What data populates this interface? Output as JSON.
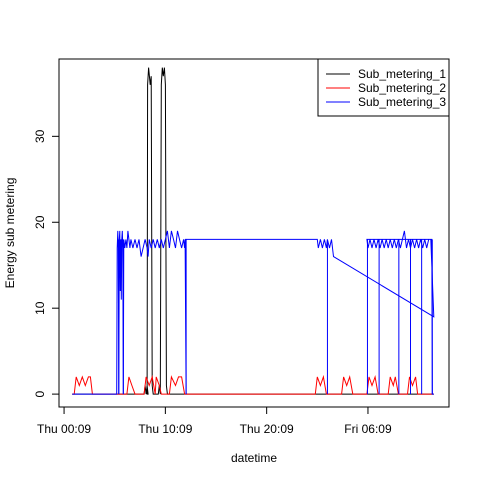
{
  "chart_data": {
    "type": "line",
    "title": "",
    "xlabel": "datetime",
    "ylabel": "Energy sub metering",
    "x_ticks": [
      "Thu 00:09",
      "Thu 10:09",
      "Thu 20:09",
      "Fri 06:09"
    ],
    "y_ticks": [
      0,
      10,
      20,
      30
    ],
    "xlim_hours": [
      -0.5,
      38
    ],
    "ylim": [
      -1.5,
      39
    ],
    "legend_position": "top-right",
    "series": [
      {
        "name": "Sub_metering_1",
        "color": "#000000",
        "points": [
          [
            0.8,
            0
          ],
          [
            7.9,
            0
          ],
          [
            8.0,
            1
          ],
          [
            8.1,
            0
          ],
          [
            8.2,
            1
          ],
          [
            8.3,
            0
          ],
          [
            8.2,
            0
          ],
          [
            8.25,
            36
          ],
          [
            8.35,
            38
          ],
          [
            8.5,
            36
          ],
          [
            8.6,
            37
          ],
          [
            8.7,
            1
          ],
          [
            8.8,
            0
          ],
          [
            9.3,
            0
          ],
          [
            9.4,
            1
          ],
          [
            9.5,
            0
          ],
          [
            9.6,
            36
          ],
          [
            9.7,
            38
          ],
          [
            9.8,
            37
          ],
          [
            9.9,
            38
          ],
          [
            10.0,
            36
          ],
          [
            10.1,
            1
          ],
          [
            10.2,
            0
          ],
          [
            36.5,
            0
          ]
        ]
      },
      {
        "name": "Sub_metering_2",
        "color": "#ff0000",
        "points": [
          [
            0.8,
            0
          ],
          [
            1.0,
            0
          ],
          [
            1.2,
            2
          ],
          [
            1.5,
            1
          ],
          [
            1.8,
            2
          ],
          [
            2.1,
            1
          ],
          [
            2.4,
            2
          ],
          [
            2.6,
            2
          ],
          [
            2.8,
            0
          ],
          [
            6.2,
            0
          ],
          [
            6.4,
            2
          ],
          [
            6.7,
            1
          ],
          [
            7.0,
            0
          ],
          [
            7.9,
            0
          ],
          [
            8.1,
            2
          ],
          [
            8.4,
            1
          ],
          [
            8.7,
            2
          ],
          [
            9.0,
            0
          ],
          [
            9.1,
            2
          ],
          [
            9.4,
            1
          ],
          [
            9.6,
            0
          ],
          [
            10.4,
            0
          ],
          [
            10.6,
            2
          ],
          [
            11.0,
            1
          ],
          [
            11.3,
            2
          ],
          [
            11.6,
            2
          ],
          [
            11.9,
            0
          ],
          [
            24.8,
            0
          ],
          [
            25.0,
            2
          ],
          [
            25.3,
            1
          ],
          [
            25.6,
            2
          ],
          [
            25.9,
            0
          ],
          [
            27.4,
            0
          ],
          [
            27.6,
            2
          ],
          [
            27.9,
            1
          ],
          [
            28.2,
            2
          ],
          [
            28.5,
            0
          ],
          [
            29.9,
            0
          ],
          [
            30.1,
            2
          ],
          [
            30.4,
            1
          ],
          [
            30.7,
            2
          ],
          [
            31.0,
            0
          ],
          [
            32.0,
            0
          ],
          [
            32.2,
            2
          ],
          [
            32.5,
            1
          ],
          [
            32.7,
            2
          ],
          [
            33.0,
            0
          ],
          [
            33.9,
            0
          ],
          [
            34.1,
            2
          ],
          [
            34.4,
            1
          ],
          [
            34.7,
            2
          ],
          [
            34.9,
            0
          ],
          [
            36.5,
            0
          ]
        ]
      },
      {
        "name": "Sub_metering_3",
        "color": "#0000ff",
        "points": [
          [
            0.8,
            0
          ],
          [
            5.2,
            0
          ],
          [
            5.25,
            17
          ],
          [
            5.3,
            19
          ],
          [
            5.35,
            17
          ],
          [
            5.4,
            0
          ],
          [
            5.45,
            18
          ],
          [
            5.5,
            19
          ],
          [
            5.55,
            12
          ],
          [
            5.6,
            18
          ],
          [
            5.65,
            11
          ],
          [
            5.7,
            18
          ],
          [
            5.75,
            19
          ],
          [
            5.8,
            17
          ],
          [
            5.85,
            0
          ],
          [
            5.9,
            18
          ],
          [
            6.0,
            17
          ],
          [
            6.1,
            18
          ],
          [
            6.2,
            17
          ],
          [
            6.3,
            19
          ],
          [
            6.4,
            18
          ],
          [
            6.5,
            17
          ],
          [
            6.6,
            18
          ],
          [
            6.8,
            17
          ],
          [
            7.0,
            18
          ],
          [
            7.2,
            17
          ],
          [
            7.4,
            18
          ],
          [
            7.6,
            16
          ],
          [
            7.8,
            17
          ],
          [
            8.0,
            18
          ],
          [
            8.2,
            17
          ],
          [
            8.3,
            16
          ],
          [
            8.4,
            18
          ],
          [
            8.6,
            17
          ],
          [
            8.8,
            18
          ],
          [
            9.0,
            17
          ],
          [
            9.2,
            18
          ],
          [
            9.4,
            17
          ],
          [
            9.6,
            18
          ],
          [
            9.8,
            17
          ],
          [
            10.0,
            18
          ],
          [
            10.2,
            19
          ],
          [
            10.4,
            17
          ],
          [
            10.6,
            19
          ],
          [
            10.8,
            18
          ],
          [
            11.0,
            17
          ],
          [
            11.2,
            19
          ],
          [
            11.4,
            18
          ],
          [
            11.6,
            17
          ],
          [
            11.8,
            18
          ],
          [
            11.9,
            17
          ],
          [
            11.95,
            18
          ],
          [
            12.05,
            0
          ],
          [
            12.0,
            18
          ],
          [
            25.0,
            18
          ],
          [
            25.1,
            17
          ],
          [
            25.3,
            18
          ],
          [
            25.5,
            17
          ],
          [
            25.7,
            18
          ],
          [
            25.9,
            17
          ],
          [
            26.0,
            18
          ],
          [
            26.2,
            17
          ],
          [
            26.4,
            18
          ],
          [
            26.5,
            17
          ],
          [
            26.6,
            16
          ],
          [
            36.5,
            9
          ],
          [
            36.2,
            18
          ],
          [
            29.9,
            18
          ],
          [
            30.0,
            17
          ],
          [
            30.2,
            18
          ],
          [
            30.4,
            17
          ],
          [
            30.6,
            18
          ],
          [
            30.8,
            17
          ],
          [
            31.0,
            18
          ],
          [
            31.2,
            17
          ],
          [
            31.4,
            18
          ],
          [
            31.6,
            17
          ],
          [
            31.8,
            18
          ],
          [
            32.0,
            17
          ],
          [
            32.2,
            18
          ],
          [
            32.4,
            17
          ],
          [
            32.6,
            18
          ],
          [
            32.8,
            17
          ],
          [
            33.0,
            18
          ],
          [
            33.2,
            17
          ],
          [
            33.4,
            18
          ],
          [
            33.6,
            19
          ],
          [
            33.8,
            17
          ],
          [
            34.0,
            18
          ],
          [
            34.2,
            17
          ],
          [
            34.4,
            18
          ],
          [
            34.6,
            17
          ],
          [
            34.8,
            18
          ],
          [
            35.0,
            17
          ],
          [
            35.2,
            18
          ],
          [
            35.4,
            17
          ],
          [
            35.6,
            18
          ],
          [
            35.8,
            17
          ],
          [
            36.0,
            18
          ],
          [
            36.3,
            18
          ],
          [
            36.35,
            0
          ],
          [
            36.5,
            0
          ]
        ]
      }
    ],
    "verticals": [
      {
        "series": 2,
        "x": 5.4,
        "y0": 0,
        "y1": 18
      },
      {
        "series": 2,
        "x": 5.85,
        "y0": 0,
        "y1": 18
      },
      {
        "series": 2,
        "x": 12.05,
        "y0": 0,
        "y1": 18
      },
      {
        "series": 2,
        "x": 26.0,
        "y0": 0,
        "y1": 18
      },
      {
        "series": 2,
        "x": 29.95,
        "y0": 0,
        "y1": 18
      },
      {
        "series": 2,
        "x": 31.1,
        "y0": 0,
        "y1": 18
      },
      {
        "series": 2,
        "x": 33.05,
        "y0": 0,
        "y1": 18
      },
      {
        "series": 2,
        "x": 34.2,
        "y0": 0,
        "y1": 18
      },
      {
        "series": 2,
        "x": 35.3,
        "y0": 0,
        "y1": 18
      },
      {
        "series": 2,
        "x": 36.35,
        "y0": 0,
        "y1": 18
      }
    ]
  }
}
